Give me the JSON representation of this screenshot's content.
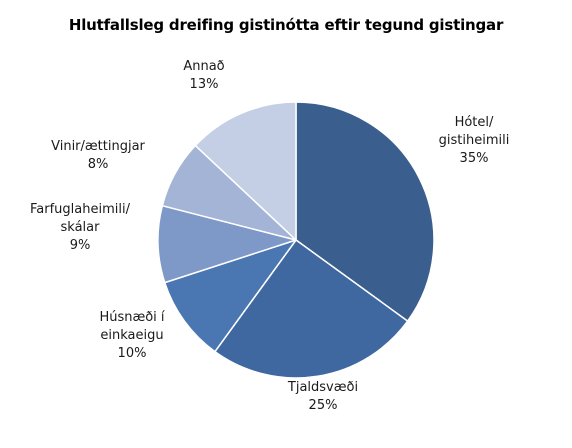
{
  "chart_data": {
    "type": "pie",
    "title": "Hlutfallsleg dreifing gistinótta eftir tegund gistingar",
    "slices": [
      {
        "label_lines": [
          "Hótel/",
          "gistiheimili"
        ],
        "percent_label": "35%",
        "value": 35,
        "color": "#3a5f8f"
      },
      {
        "label_lines": [
          "Tjaldsvæði"
        ],
        "percent_label": "25%",
        "value": 25,
        "color": "#3f68a0"
      },
      {
        "label_lines": [
          "Húsnæði í",
          "einkaeigu"
        ],
        "percent_label": "10%",
        "value": 10,
        "color": "#4a77b1"
      },
      {
        "label_lines": [
          "Farfuglaheimili/",
          "skálar"
        ],
        "percent_label": "9%",
        "value": 9,
        "color": "#7e98c8"
      },
      {
        "label_lines": [
          "Vinir/ættingjar"
        ],
        "percent_label": "8%",
        "value": 8,
        "color": "#a3b4d6"
      },
      {
        "label_lines": [
          "Annað"
        ],
        "percent_label": "13%",
        "value": 13,
        "color": "#c4cfe5"
      }
    ],
    "start": "12 o'clock",
    "direction": "clockwise",
    "legend": "none"
  }
}
